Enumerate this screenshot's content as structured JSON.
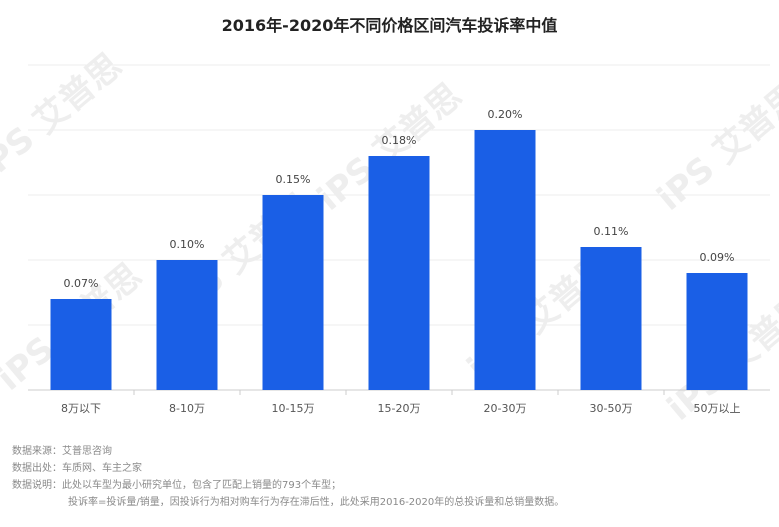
{
  "title": "2016年-2020年不同价格区间汽车投诉率中值",
  "watermark": "iPS 艾普思",
  "notes": [
    "数据来源：艾普思咨询",
    "数据出处：车质网、车主之家",
    "数据说明：此处以车型为最小研究单位，包含了匹配上销量的793个车型；",
    "投诉率=投诉量/销量，因投诉行为相对购车行为存在滞后性，此处采用2016-2020年的总投诉量和总销量数据。"
  ],
  "chart_data": {
    "type": "bar",
    "title": "2016年-2020年不同价格区间汽车投诉率中值",
    "categories": [
      "8万以下",
      "8-10万",
      "10-15万",
      "15-20万",
      "20-30万",
      "30-50万",
      "50万以上"
    ],
    "values": [
      0.07,
      0.1,
      0.15,
      0.18,
      0.2,
      0.11,
      0.09
    ],
    "value_labels": [
      "0.07%",
      "0.10%",
      "0.15%",
      "0.18%",
      "0.20%",
      "0.11%",
      "0.09%"
    ],
    "unit": "%",
    "ylim": [
      0,
      0.25
    ],
    "grid": true,
    "legend": "none",
    "colors": {
      "bar": "#1a5fe6",
      "grid": "#eeeeee",
      "axis": "#cccccc"
    }
  }
}
